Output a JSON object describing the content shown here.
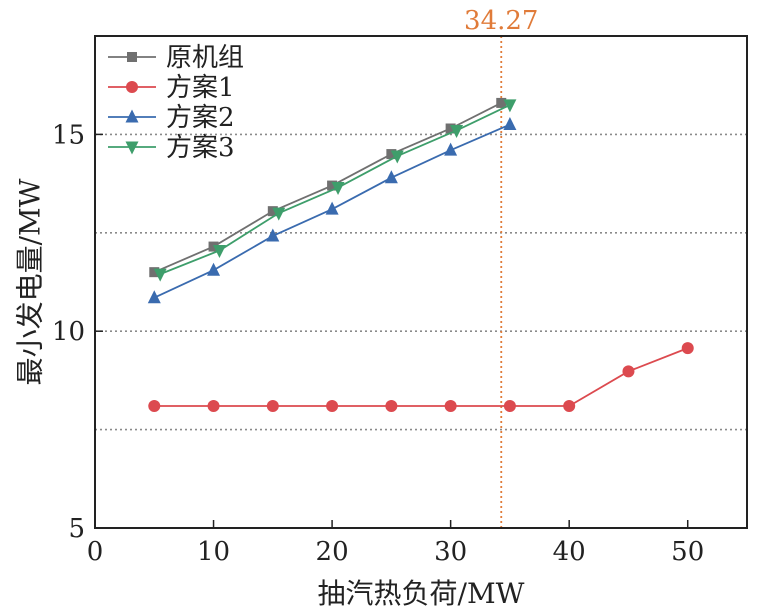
{
  "chart_data": {
    "type": "line",
    "title": "",
    "xlabel": "抽汽热负荷/MW",
    "ylabel": "最小发电量/MW",
    "xlim": [
      0,
      55
    ],
    "ylim": [
      5,
      17.5
    ],
    "xticks": [
      0,
      10,
      20,
      30,
      40,
      50
    ],
    "yticks": [
      5,
      10,
      15
    ],
    "grid": "horizontal dotted lines at y = 7.5, 10, 12.5, 15",
    "gridlines_y": [
      7.5,
      10,
      12.5,
      15
    ],
    "legend": "top-left",
    "annotation": {
      "type": "vertical dotted line",
      "x": 34.27,
      "label": "34.27",
      "color": "#E07B39"
    },
    "series": [
      {
        "name": "原机组",
        "color": "#707070",
        "marker": "square",
        "x": [
          5,
          10,
          15,
          20,
          25,
          30,
          34.27
        ],
        "y": [
          11.5,
          12.15,
          13.05,
          13.7,
          14.5,
          15.15,
          15.8
        ]
      },
      {
        "name": "方案1",
        "color": "#DC4A4F",
        "marker": "circle",
        "x": [
          5,
          10,
          15,
          20,
          25,
          30,
          35,
          40,
          45,
          50
        ],
        "y": [
          8.1,
          8.1,
          8.1,
          8.1,
          8.1,
          8.1,
          8.1,
          8.1,
          8.98,
          9.57
        ]
      },
      {
        "name": "方案2",
        "color": "#3A6BAF",
        "marker": "triangle-up",
        "x": [
          5,
          10,
          15,
          20,
          25,
          30,
          35
        ],
        "y": [
          10.85,
          11.55,
          12.42,
          13.1,
          13.9,
          14.6,
          15.25
        ]
      },
      {
        "name": "方案3",
        "color": "#3E9E6B",
        "marker": "triangle-down",
        "x": [
          5.5,
          10.5,
          15.5,
          20.5,
          25.5,
          30.5,
          35
        ],
        "y": [
          11.45,
          12.05,
          13.0,
          13.65,
          14.45,
          15.1,
          15.75
        ]
      }
    ]
  }
}
